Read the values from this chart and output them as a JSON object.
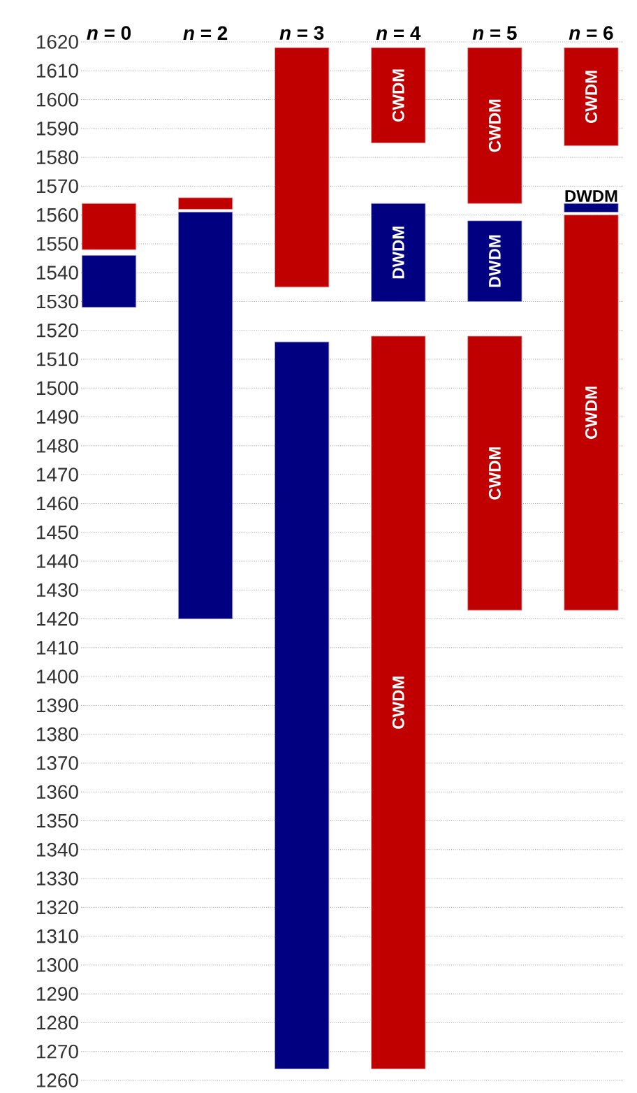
{
  "chart_data": {
    "type": "bar",
    "categories": [
      "*n* = 0",
      "*n* = 2",
      "*n* = 3",
      "*n* = 4",
      "*n* = 5",
      "*n* = 6"
    ],
    "series": [
      {
        "color": "#c00000",
        "values": [
          16,
          4,
          83,
          33,
          54,
          34
        ],
        "base": [
          1548,
          1562,
          1535,
          1585,
          1564,
          1584
        ],
        "value_labels": [
          null,
          null,
          null,
          "CWDM",
          "CWDM",
          "CWDM"
        ]
      },
      {
        "color": "#000080",
        "values": [
          18,
          141,
          252,
          34,
          28,
          3
        ],
        "base": [
          1528,
          1420,
          1264,
          1530,
          1530,
          1561
        ],
        "value_labels": [
          null,
          null,
          null,
          "DWDM",
          "DWDM",
          "DWDM"
        ]
      },
      {
        "color": "#c00000",
        "values": [
          null,
          null,
          null,
          254,
          95,
          137
        ],
        "base": [
          null,
          null,
          null,
          1264,
          1423,
          1423
        ],
        "value_labels": [
          null,
          null,
          null,
          "CWDM",
          "CWDM",
          "CWDM"
        ]
      }
    ],
    "ylim": [
      1260,
      1620
    ],
    "yticks": [
      1260,
      1270,
      1280,
      1290,
      1300,
      1310,
      1320,
      1330,
      1340,
      1350,
      1360,
      1370,
      1380,
      1390,
      1400,
      1410,
      1420,
      1430,
      1440,
      1450,
      1460,
      1470,
      1480,
      1490,
      1500,
      1510,
      1520,
      1530,
      1540,
      1550,
      1560,
      1570,
      1580,
      1590,
      1600,
      1610,
      1620
    ],
    "grid": "y"
  }
}
